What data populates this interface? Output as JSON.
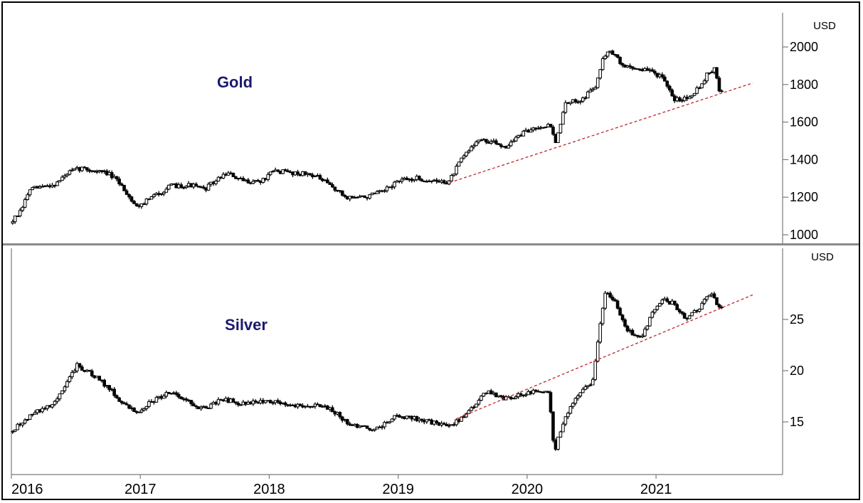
{
  "colors": {
    "candle": "#000000",
    "trendline": "#c0272d",
    "title": "#1a1a6e",
    "axis": "#7a7a7a",
    "divider": "#8a8a8a"
  },
  "chart_data": [
    {
      "type": "candlestick",
      "title": "Gold",
      "unit_label": "USD",
      "xlabel": "",
      "ylabel": "",
      "ylim": [
        980,
        2085
      ],
      "yticks": [
        1000,
        1200,
        1400,
        1600,
        1800,
        2000
      ],
      "grid": false,
      "x_range": [
        2016.0,
        2021.75
      ],
      "price_path": [
        [
          2016.0,
          1062
        ],
        [
          2016.08,
          1120
        ],
        [
          2016.15,
          1240
        ],
        [
          2016.25,
          1255
        ],
        [
          2016.35,
          1270
        ],
        [
          2016.45,
          1330
        ],
        [
          2016.55,
          1355
        ],
        [
          2016.65,
          1340
        ],
        [
          2016.75,
          1330
        ],
        [
          2016.85,
          1275
        ],
        [
          2016.98,
          1150
        ],
        [
          2017.1,
          1200
        ],
        [
          2017.25,
          1260
        ],
        [
          2017.4,
          1265
        ],
        [
          2017.5,
          1240
        ],
        [
          2017.68,
          1330
        ],
        [
          2017.8,
          1285
        ],
        [
          2017.95,
          1285
        ],
        [
          2018.05,
          1340
        ],
        [
          2018.2,
          1330
        ],
        [
          2018.35,
          1320
        ],
        [
          2018.5,
          1255
        ],
        [
          2018.6,
          1200
        ],
        [
          2018.75,
          1200
        ],
        [
          2018.9,
          1230
        ],
        [
          2019.0,
          1285
        ],
        [
          2019.15,
          1300
        ],
        [
          2019.28,
          1285
        ],
        [
          2019.4,
          1280
        ],
        [
          2019.5,
          1400
        ],
        [
          2019.62,
          1505
        ],
        [
          2019.75,
          1490
        ],
        [
          2019.85,
          1470
        ],
        [
          2019.95,
          1530
        ],
        [
          2020.1,
          1580
        ],
        [
          2020.2,
          1580
        ],
        [
          2020.23,
          1480
        ],
        [
          2020.3,
          1690
        ],
        [
          2020.45,
          1730
        ],
        [
          2020.55,
          1800
        ],
        [
          2020.6,
          1950
        ],
        [
          2020.65,
          1990
        ],
        [
          2020.75,
          1900
        ],
        [
          2020.9,
          1880
        ],
        [
          2020.98,
          1870
        ],
        [
          2021.05,
          1840
        ],
        [
          2021.15,
          1720
        ],
        [
          2021.25,
          1730
        ],
        [
          2021.35,
          1790
        ],
        [
          2021.42,
          1870
        ],
        [
          2021.47,
          1880
        ],
        [
          2021.5,
          1760
        ]
      ],
      "trendline": {
        "from": [
          2019.4,
          1278
        ],
        "to": [
          2021.75,
          1808
        ]
      }
    },
    {
      "type": "candlestick",
      "title": "Silver",
      "unit_label": "USD",
      "xlabel": "",
      "ylabel": "",
      "ylim": [
        10.5,
        30.5
      ],
      "yticks": [
        15,
        20,
        25
      ],
      "grid": false,
      "x_range": [
        2016.0,
        2021.75
      ],
      "price_path": [
        [
          2016.0,
          14.0
        ],
        [
          2016.1,
          15.0
        ],
        [
          2016.18,
          15.8
        ],
        [
          2016.3,
          16.5
        ],
        [
          2016.38,
          17.5
        ],
        [
          2016.52,
          20.5
        ],
        [
          2016.65,
          19.5
        ],
        [
          2016.75,
          18.5
        ],
        [
          2016.9,
          16.5
        ],
        [
          2016.98,
          16.0
        ],
        [
          2017.1,
          17.0
        ],
        [
          2017.25,
          18.0
        ],
        [
          2017.4,
          16.8
        ],
        [
          2017.5,
          16.3
        ],
        [
          2017.65,
          17.2
        ],
        [
          2017.8,
          16.8
        ],
        [
          2017.95,
          17.0
        ],
        [
          2018.05,
          17.0
        ],
        [
          2018.2,
          16.6
        ],
        [
          2018.35,
          16.6
        ],
        [
          2018.5,
          16.2
        ],
        [
          2018.6,
          15.0
        ],
        [
          2018.7,
          14.5
        ],
        [
          2018.85,
          14.3
        ],
        [
          2018.98,
          15.5
        ],
        [
          2019.1,
          15.5
        ],
        [
          2019.25,
          15.0
        ],
        [
          2019.4,
          14.6
        ],
        [
          2019.55,
          15.8
        ],
        [
          2019.7,
          18.0
        ],
        [
          2019.83,
          17.3
        ],
        [
          2019.95,
          17.6
        ],
        [
          2020.1,
          18.0
        ],
        [
          2020.18,
          17.8
        ],
        [
          2020.2,
          14.5
        ],
        [
          2020.22,
          12.0
        ],
        [
          2020.3,
          15.5
        ],
        [
          2020.4,
          17.5
        ],
        [
          2020.52,
          19.0
        ],
        [
          2020.57,
          24.0
        ],
        [
          2020.62,
          28.0
        ],
        [
          2020.7,
          26.5
        ],
        [
          2020.78,
          24.0
        ],
        [
          2020.88,
          23.0
        ],
        [
          2020.98,
          25.5
        ],
        [
          2021.05,
          27.0
        ],
        [
          2021.15,
          26.5
        ],
        [
          2021.25,
          25.0
        ],
        [
          2021.35,
          26.2
        ],
        [
          2021.42,
          27.5
        ],
        [
          2021.47,
          27.0
        ],
        [
          2021.5,
          26.0
        ]
      ],
      "trendline": {
        "from": [
          2019.45,
          15.3
        ],
        "to": [
          2021.75,
          27.4
        ]
      }
    }
  ],
  "x_axis": {
    "tick_labels": [
      "2016",
      "2017",
      "2018",
      "2019",
      "2020",
      "2021"
    ],
    "tick_years": [
      2016,
      2017,
      2018,
      2019,
      2020,
      2021
    ]
  }
}
